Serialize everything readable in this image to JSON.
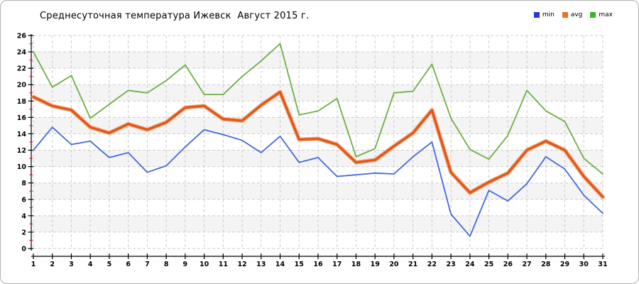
{
  "title": "Среднесуточная температура Ижевск  Август 2015 г.",
  "legend": {
    "position": "top-right",
    "items": [
      {
        "label": "min",
        "color": "#2638dc"
      },
      {
        "label": "avg",
        "color": "#e8722e"
      },
      {
        "label": "max",
        "color": "#3db229"
      }
    ]
  },
  "chart_data": {
    "type": "line",
    "title": "Среднесуточная температура Ижевск  Август 2015 г.",
    "xlabel": "",
    "ylabel": "",
    "ylim": [
      0,
      26
    ],
    "ytick_step": 2,
    "grid": "dashed",
    "legend_position": "top-right",
    "categories": [
      1,
      2,
      3,
      4,
      5,
      6,
      7,
      8,
      9,
      10,
      11,
      12,
      13,
      14,
      15,
      16,
      17,
      18,
      19,
      20,
      21,
      22,
      23,
      24,
      25,
      26,
      27,
      28,
      29,
      30,
      31
    ],
    "series": [
      {
        "name": "min",
        "color": "#4468dd",
        "values": [
          12.0,
          14.8,
          12.7,
          13.1,
          11.1,
          11.7,
          9.3,
          10.1,
          12.4,
          14.5,
          13.9,
          13.2,
          11.7,
          13.7,
          10.5,
          11.1,
          8.8,
          9.0,
          9.2,
          9.1,
          11.2,
          13.0,
          4.2,
          1.5,
          7.1,
          5.8,
          7.9,
          11.2,
          9.7,
          6.5,
          4.3
        ]
      },
      {
        "name": "avg",
        "color": "#e0591e",
        "halo_color": "#f3a977",
        "values": [
          18.5,
          17.4,
          16.9,
          14.8,
          14.1,
          15.2,
          14.5,
          15.4,
          17.2,
          17.4,
          15.8,
          15.6,
          17.5,
          19.1,
          13.3,
          13.4,
          12.7,
          10.5,
          10.8,
          12.5,
          14.1,
          16.9,
          9.3,
          6.8,
          8.1,
          9.2,
          12.0,
          13.1,
          12.0,
          8.8,
          6.3
        ]
      },
      {
        "name": "max",
        "color": "#6fae45",
        "values": [
          24.0,
          19.7,
          21.1,
          15.9,
          17.6,
          19.3,
          19.0,
          20.5,
          22.4,
          18.8,
          18.8,
          21.0,
          22.9,
          25.0,
          16.3,
          16.8,
          18.3,
          11.2,
          12.2,
          19.0,
          19.2,
          22.5,
          15.9,
          12.1,
          10.9,
          13.8,
          19.3,
          16.8,
          15.5,
          11.0,
          9.1
        ]
      }
    ],
    "style_colors": {
      "grid": "#cccccc",
      "band": "#f4f4f4",
      "axis": "#000000",
      "minor_tick": "#cc2020",
      "border": "#b0b0b0"
    }
  }
}
